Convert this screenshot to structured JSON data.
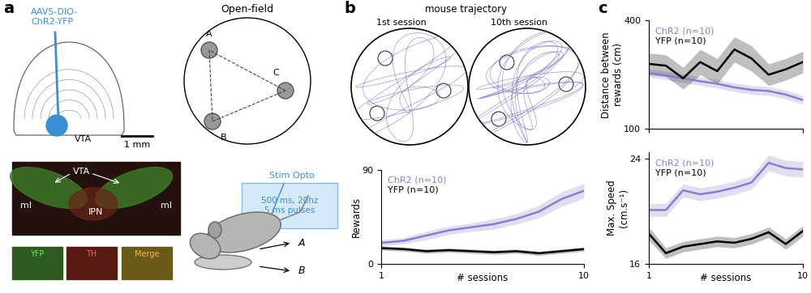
{
  "chart_data": [
    {
      "type": "line",
      "ylabel": "Rewards",
      "xlabel": "# sessions",
      "x": [
        1,
        2,
        3,
        4,
        5,
        6,
        7,
        8,
        9,
        10
      ],
      "xlim": [
        1,
        10
      ],
      "xticks": [
        1,
        10
      ],
      "ylim": [
        0,
        90
      ],
      "yticks": [
        0,
        90
      ],
      "legend": "upper left",
      "series": [
        {
          "name": "ChR2 (n=10)",
          "color": "#8a7fc9",
          "values": [
            20,
            22,
            27,
            32,
            35,
            38,
            43,
            50,
            62,
            70
          ],
          "error": [
            3,
            3,
            4,
            4,
            4,
            5,
            5,
            6,
            7,
            7
          ]
        },
        {
          "name": "YFP (n=10)",
          "color": "#000000",
          "values": [
            15,
            14,
            12,
            13,
            12,
            11,
            12,
            10,
            12,
            14
          ],
          "error": [
            2,
            2,
            2,
            2,
            2,
            2,
            2,
            2,
            2,
            2
          ]
        }
      ]
    },
    {
      "type": "line",
      "ylabel": "Distance between\nrewards (cm)",
      "tick_labels": "y",
      "x": [
        1,
        2,
        3,
        4,
        5,
        6,
        7,
        8,
        9,
        10
      ],
      "xlim": [
        1,
        10
      ],
      "xticks": [
        1,
        10
      ],
      "ylim": [
        100,
        400
      ],
      "yticks": [
        100,
        400
      ],
      "legend": "upper left",
      "series": [
        {
          "name": "ChR2 (n=10)",
          "color": "#8a7fc9",
          "values": [
            255,
            248,
            240,
            232,
            225,
            215,
            208,
            205,
            195,
            180
          ],
          "error": [
            12,
            12,
            12,
            12,
            12,
            12,
            12,
            12,
            12,
            12
          ]
        },
        {
          "name": "YFP (n=10)",
          "color": "#000000",
          "values": [
            280,
            275,
            240,
            285,
            260,
            320,
            295,
            250,
            265,
            285
          ],
          "error": [
            30,
            30,
            30,
            35,
            35,
            35,
            35,
            30,
            30,
            30
          ]
        }
      ]
    },
    {
      "type": "line",
      "ylabel": "Max. Speed\n(cm.s⁻¹)",
      "xlabel": "# sessions",
      "x": [
        1,
        2,
        3,
        4,
        5,
        6,
        7,
        8,
        9,
        10
      ],
      "xlim": [
        1,
        10
      ],
      "xticks": [
        1,
        10
      ],
      "ylim": [
        16,
        24.5
      ],
      "yticks": [
        16,
        24
      ],
      "legend": "upper left",
      "series": [
        {
          "name": "ChR2 (n=10)",
          "color": "#8a7fc9",
          "values": [
            20.1,
            20.1,
            21.6,
            21.3,
            21.5,
            21.8,
            22.2,
            23.7,
            23.3,
            23.2
          ],
          "error": [
            0.5,
            0.5,
            0.5,
            0.5,
            0.5,
            0.5,
            0.5,
            0.6,
            0.6,
            0.6
          ]
        },
        {
          "name": "YFP (n=10)",
          "color": "#000000",
          "values": [
            18.3,
            16.8,
            17.3,
            17.5,
            17.7,
            17.6,
            17.9,
            18.4,
            17.5,
            18.5
          ],
          "error": [
            0.5,
            0.4,
            0.4,
            0.4,
            0.4,
            0.4,
            0.4,
            0.4,
            0.4,
            0.4
          ]
        }
      ]
    }
  ],
  "diagram": {
    "panel_labels": [
      "a",
      "b",
      "c"
    ],
    "injection": "AAV5-DIO-\nChR2-YFP",
    "brain": {
      "region": "VTA",
      "scale": "1 mm"
    },
    "histology": {
      "labels": [
        "VTA",
        "ml",
        "IPN",
        "ml"
      ],
      "channels": [
        "YFP",
        "TH",
        "Merge"
      ]
    },
    "open_field": {
      "title": "Open-field",
      "zones": [
        "A",
        "B",
        "C"
      ]
    },
    "stim": {
      "title": "Stim Opto",
      "params": "500 ms, 20hz\n5 ms pulses"
    },
    "mouse_targets": [
      "A",
      "B"
    ],
    "trajectory": {
      "title": "mouse trajectory",
      "sessions": [
        "1st session",
        "10th session"
      ]
    }
  }
}
